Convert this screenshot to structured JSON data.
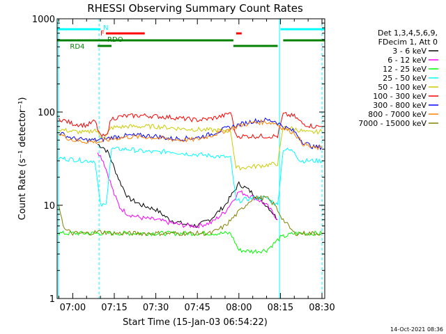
{
  "chart_data": {
    "type": "line",
    "title": "RHESSI Observing Summary Count Rates",
    "xlabel": "Start Time (15-Jan-03 06:54:22)",
    "ylabel": "Count Rate (s⁻¹ detector⁻¹)",
    "yscale": "log",
    "ylim": [
      1,
      1000
    ],
    "xlim": [
      "06:54:22",
      "08:31:00"
    ],
    "x_ticks": [
      "07:00",
      "07:15",
      "07:30",
      "07:45",
      "08:00",
      "08:15",
      "08:30"
    ],
    "y_ticks": [
      "1",
      "10",
      "100",
      "1000"
    ],
    "legend_header": [
      "Det 1,3,4,5,6,9,",
      "FDecim 1, Att 0"
    ],
    "legend_position": "right",
    "flags": [
      {
        "label": "N",
        "color": "#00ffff",
        "intervals": [
          [
            "06:54",
            "07:10"
          ],
          [
            "08:15",
            "08:31"
          ]
        ]
      },
      {
        "label": "F",
        "color": "#ff0000",
        "intervals": [
          [
            "07:12",
            "07:26"
          ],
          [
            "07:59",
            "08:01"
          ]
        ]
      },
      {
        "label": "RDO",
        "color": "#008000",
        "intervals": [
          [
            "06:54",
            "07:14"
          ],
          [
            "07:14",
            "07:58"
          ],
          [
            "08:16",
            "08:31"
          ]
        ]
      },
      {
        "label": "RD4",
        "color": "#008000",
        "intervals": [
          [
            "07:09",
            "07:14"
          ],
          [
            "07:58",
            "08:14"
          ]
        ]
      }
    ],
    "series": [
      {
        "name": "3 - 6 keV",
        "color": "#000000",
        "points": [
          [
            "07:09",
            45
          ],
          [
            "07:11",
            42
          ],
          [
            "07:13",
            36
          ],
          [
            "07:15",
            25
          ],
          [
            "07:17",
            18
          ],
          [
            "07:20",
            12
          ],
          [
            "07:25",
            10
          ],
          [
            "07:30",
            9
          ],
          [
            "07:35",
            7
          ],
          [
            "07:40",
            6.3
          ],
          [
            "07:45",
            6
          ],
          [
            "07:50",
            7.2
          ],
          [
            "07:55",
            10
          ],
          [
            "08:00",
            17
          ],
          [
            "08:03",
            15
          ],
          [
            "08:07",
            12
          ],
          [
            "08:10",
            10
          ],
          [
            "08:12",
            8.5
          ],
          [
            "08:14",
            7
          ]
        ]
      },
      {
        "name": "6 - 12 keV",
        "color": "#ff00ff",
        "points": [
          [
            "07:09",
            38
          ],
          [
            "07:11",
            30
          ],
          [
            "07:13",
            20
          ],
          [
            "07:15",
            13
          ],
          [
            "07:17",
            9.5
          ],
          [
            "07:20",
            8
          ],
          [
            "07:25",
            7.3
          ],
          [
            "07:30",
            7
          ],
          [
            "07:35",
            6.5
          ],
          [
            "07:40",
            6.1
          ],
          [
            "07:45",
            6
          ],
          [
            "07:50",
            6.5
          ],
          [
            "07:55",
            8.5
          ],
          [
            "08:00",
            14
          ],
          [
            "08:03",
            13
          ],
          [
            "08:07",
            11.5
          ],
          [
            "08:10",
            10
          ],
          [
            "08:12",
            8.5
          ],
          [
            "08:14",
            7
          ]
        ]
      },
      {
        "name": "12 - 25 keV",
        "color": "#00ff00",
        "points": [
          [
            "06:55",
            5
          ],
          [
            "07:00",
            5
          ],
          [
            "07:05",
            5
          ],
          [
            "07:10",
            5
          ],
          [
            "07:15",
            5
          ],
          [
            "07:20",
            5
          ],
          [
            "07:25",
            5
          ],
          [
            "07:30",
            5
          ],
          [
            "07:35",
            5
          ],
          [
            "07:40",
            5
          ],
          [
            "07:45",
            5
          ],
          [
            "07:50",
            5
          ],
          [
            "07:57",
            5
          ],
          [
            "08:00",
            3.3
          ],
          [
            "08:05",
            3.2
          ],
          [
            "08:10",
            3.3
          ],
          [
            "08:15",
            4.5
          ],
          [
            "08:20",
            5
          ],
          [
            "08:25",
            5
          ],
          [
            "08:30",
            5
          ]
        ]
      },
      {
        "name": "25 - 50 keV",
        "color": "#00ffff",
        "points": [
          [
            "06:55",
            32
          ],
          [
            "07:00",
            31
          ],
          [
            "07:05",
            30
          ],
          [
            "07:08",
            30
          ],
          [
            "07:10",
            10
          ],
          [
            "07:12",
            10
          ],
          [
            "07:14",
            40
          ],
          [
            "07:20",
            40
          ],
          [
            "07:25",
            38
          ],
          [
            "07:30",
            37
          ],
          [
            "07:35",
            38
          ],
          [
            "07:40",
            36
          ],
          [
            "07:45",
            35
          ],
          [
            "07:50",
            34
          ],
          [
            "07:55",
            33
          ],
          [
            "07:57",
            32
          ],
          [
            "07:59",
            11
          ],
          [
            "08:05",
            12
          ],
          [
            "08:10",
            12
          ],
          [
            "08:14",
            10
          ],
          [
            "08:16",
            40
          ],
          [
            "08:20",
            38
          ],
          [
            "08:22",
            30
          ],
          [
            "08:25",
            30
          ],
          [
            "08:30",
            30
          ]
        ]
      },
      {
        "name": "50 - 100 keV",
        "color": "#cccc00",
        "points": [
          [
            "06:55",
            65
          ],
          [
            "07:00",
            62
          ],
          [
            "07:05",
            60
          ],
          [
            "07:08",
            65
          ],
          [
            "07:10",
            55
          ],
          [
            "07:12",
            55
          ],
          [
            "07:14",
            68
          ],
          [
            "07:20",
            70
          ],
          [
            "07:25",
            70
          ],
          [
            "07:30",
            70
          ],
          [
            "07:35",
            68
          ],
          [
            "07:40",
            66
          ],
          [
            "07:45",
            65
          ],
          [
            "07:50",
            64
          ],
          [
            "07:57",
            63
          ],
          [
            "07:59",
            25
          ],
          [
            "08:05",
            26
          ],
          [
            "08:10",
            27
          ],
          [
            "08:14",
            28
          ],
          [
            "08:16",
            68
          ],
          [
            "08:20",
            66
          ],
          [
            "08:25",
            60
          ],
          [
            "08:30",
            62
          ]
        ]
      },
      {
        "name": "100 - 300 keV",
        "color": "#ff0000",
        "points": [
          [
            "06:55",
            85
          ],
          [
            "07:00",
            75
          ],
          [
            "07:05",
            72
          ],
          [
            "07:08",
            80
          ],
          [
            "07:10",
            55
          ],
          [
            "07:12",
            55
          ],
          [
            "07:14",
            85
          ],
          [
            "07:18",
            90
          ],
          [
            "07:25",
            92
          ],
          [
            "07:30",
            90
          ],
          [
            "07:35",
            88
          ],
          [
            "07:40",
            85
          ],
          [
            "07:45",
            82
          ],
          [
            "07:50",
            85
          ],
          [
            "07:55",
            92
          ],
          [
            "07:57",
            100
          ],
          [
            "07:59",
            55
          ],
          [
            "08:05",
            55
          ],
          [
            "08:10",
            55
          ],
          [
            "08:14",
            55
          ],
          [
            "08:16",
            95
          ],
          [
            "08:20",
            90
          ],
          [
            "08:23",
            75
          ],
          [
            "08:27",
            70
          ],
          [
            "08:30",
            70
          ]
        ]
      },
      {
        "name": "300 - 800 keV",
        "color": "#0000ff",
        "points": [
          [
            "06:55",
            60
          ],
          [
            "07:00",
            52
          ],
          [
            "07:05",
            50
          ],
          [
            "07:10",
            50
          ],
          [
            "07:15",
            54
          ],
          [
            "07:20",
            56
          ],
          [
            "07:25",
            56
          ],
          [
            "07:30",
            55
          ],
          [
            "07:35",
            52
          ],
          [
            "07:40",
            52
          ],
          [
            "07:45",
            53
          ],
          [
            "07:50",
            58
          ],
          [
            "07:55",
            66
          ],
          [
            "08:00",
            73
          ],
          [
            "08:05",
            80
          ],
          [
            "08:10",
            82
          ],
          [
            "08:13",
            80
          ],
          [
            "08:16",
            70
          ],
          [
            "08:20",
            62
          ],
          [
            "08:23",
            48
          ],
          [
            "08:27",
            42
          ],
          [
            "08:30",
            42
          ]
        ]
      },
      {
        "name": "800 - 7000 keV",
        "color": "#ff8000",
        "points": [
          [
            "06:55",
            58
          ],
          [
            "07:00",
            50
          ],
          [
            "07:05",
            48
          ],
          [
            "07:10",
            48
          ],
          [
            "07:15",
            52
          ],
          [
            "07:20",
            54
          ],
          [
            "07:25",
            54
          ],
          [
            "07:30",
            53
          ],
          [
            "07:35",
            51
          ],
          [
            "07:40",
            50
          ],
          [
            "07:45",
            51
          ],
          [
            "07:50",
            56
          ],
          [
            "07:55",
            63
          ],
          [
            "08:00",
            71
          ],
          [
            "08:05",
            77
          ],
          [
            "08:10",
            78
          ],
          [
            "08:13",
            76
          ],
          [
            "08:16",
            67
          ],
          [
            "08:20",
            60
          ],
          [
            "08:23",
            46
          ],
          [
            "08:27",
            41
          ],
          [
            "08:30",
            41
          ]
        ]
      },
      {
        "name": "7000 - 15000 keV",
        "color": "#808000",
        "points": [
          [
            "06:55",
            10
          ],
          [
            "06:57",
            5.5
          ],
          [
            "07:00",
            5
          ],
          [
            "07:05",
            5
          ],
          [
            "07:10",
            5.2
          ],
          [
            "07:15",
            5
          ],
          [
            "07:20",
            5
          ],
          [
            "07:25",
            5
          ],
          [
            "07:30",
            5
          ],
          [
            "07:35",
            5
          ],
          [
            "07:40",
            5
          ],
          [
            "07:45",
            5
          ],
          [
            "07:50",
            5
          ],
          [
            "07:55",
            6
          ],
          [
            "08:00",
            8.5
          ],
          [
            "08:05",
            12
          ],
          [
            "08:10",
            12
          ],
          [
            "08:13",
            10
          ],
          [
            "08:16",
            7
          ],
          [
            "08:20",
            5
          ],
          [
            "08:25",
            5
          ],
          [
            "08:30",
            5
          ]
        ]
      }
    ]
  },
  "footer_timestamp": "14-Oct-2021 08:36"
}
